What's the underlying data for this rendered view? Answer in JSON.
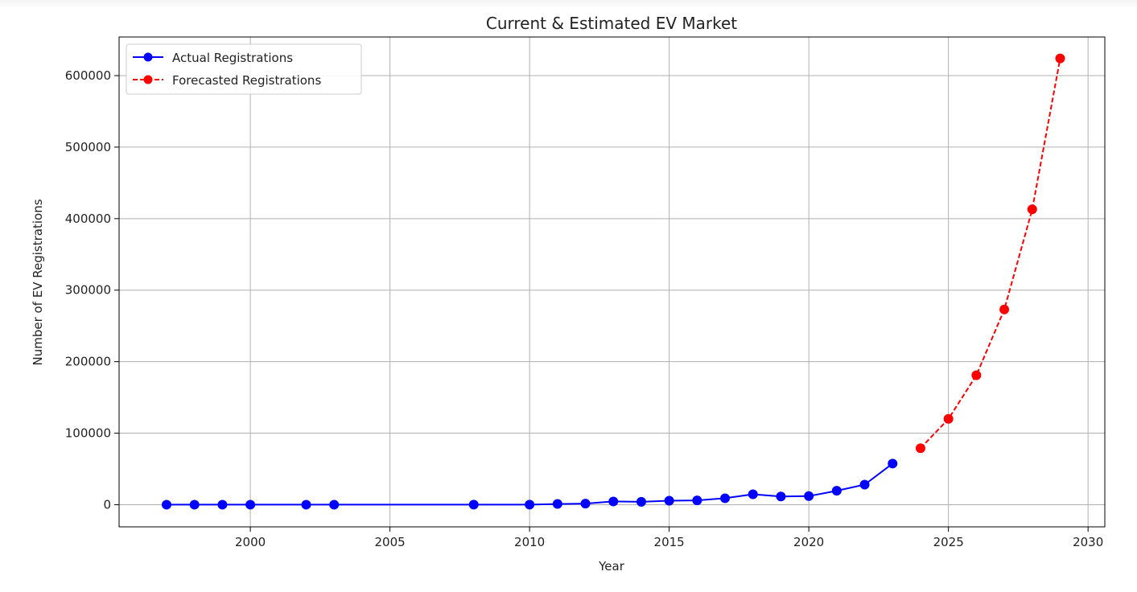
{
  "chart_data": {
    "type": "line",
    "title": "Current & Estimated EV Market",
    "xlabel": "Year",
    "ylabel": "Number of EV Registrations",
    "xlim": [
      1995.3,
      2030.6
    ],
    "ylim": [
      -31000,
      654000
    ],
    "xticks": [
      2000,
      2005,
      2010,
      2015,
      2020,
      2025,
      2030
    ],
    "yticks": [
      0,
      100000,
      200000,
      300000,
      400000,
      500000,
      600000
    ],
    "grid": true,
    "legend_position": "top-left",
    "series": [
      {
        "name": "Actual Registrations",
        "color": "#0000ff",
        "style": "solid",
        "marker": "circle",
        "x": [
          1997,
          1998,
          1999,
          2000,
          2002,
          2003,
          2008,
          2010,
          2011,
          2012,
          2013,
          2014,
          2015,
          2016,
          2017,
          2018,
          2019,
          2020,
          2021,
          2022,
          2023
        ],
        "y": [
          1,
          1,
          1,
          2,
          1,
          1,
          20,
          30,
          1000,
          1500,
          4500,
          4000,
          5500,
          6000,
          9000,
          14500,
          11500,
          12000,
          19500,
          28000,
          57500
        ]
      },
      {
        "name": "Forecasted Registrations",
        "color": "#ff0000",
        "style": "dashed",
        "marker": "circle",
        "x": [
          2024,
          2025,
          2026,
          2027,
          2028,
          2029
        ],
        "y": [
          79000,
          120000,
          181000,
          273000,
          413000,
          624000
        ]
      }
    ]
  }
}
